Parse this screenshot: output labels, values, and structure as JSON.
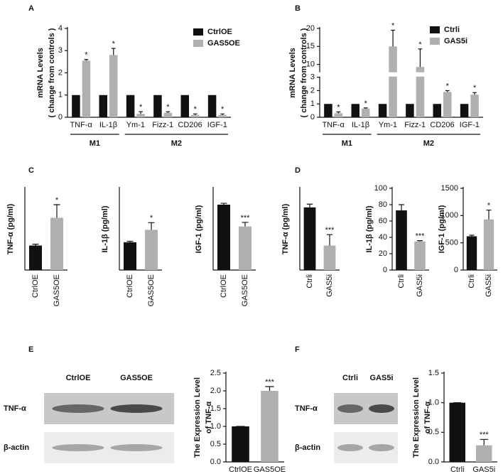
{
  "chart_data": [
    {
      "panel": "A",
      "type": "bar",
      "y_label": [
        "mRNA Levels",
        "( change from controls )"
      ],
      "categories": [
        "TNF-α",
        "IL-1β",
        "Ym-1",
        "Fizz-1",
        "CD206",
        "IGF-1"
      ],
      "category_groups": [
        "M1",
        "M1",
        "M2",
        "M2",
        "M2",
        "M2"
      ],
      "series": [
        {
          "name": "CtrlOE",
          "color": "#111111",
          "values": [
            1,
            1,
            1,
            1,
            1,
            1
          ]
        },
        {
          "name": "GAS5OE",
          "color": "#b0b0b0",
          "values": [
            2.55,
            2.8,
            0.15,
            0.2,
            0.1,
            0.1
          ],
          "errors": [
            0.05,
            0.3,
            0.1,
            0.05,
            0.05,
            0.05
          ],
          "significance": [
            "*",
            "*",
            "*",
            "*",
            "*",
            "*"
          ]
        }
      ],
      "ylim": [
        0,
        4
      ],
      "yticks": [
        0,
        1,
        2,
        3,
        4
      ],
      "legend": "top-right"
    },
    {
      "panel": "B",
      "type": "bar",
      "y_label": [
        "mRNA Levels",
        "( change from controls )"
      ],
      "categories": [
        "TNF-α",
        "IL-1β",
        "Ym-1",
        "Fizz-1",
        "CD206",
        "IGF-1"
      ],
      "category_groups": [
        "M1",
        "M1",
        "M2",
        "M2",
        "M2",
        "M2"
      ],
      "series": [
        {
          "name": "Ctrli",
          "color": "#111111",
          "values": [
            1,
            1,
            1,
            1,
            1,
            1
          ]
        },
        {
          "name": "GAS5i",
          "color": "#b0b0b0",
          "values": [
            0.3,
            0.65,
            15,
            9.3,
            1.9,
            1.7
          ],
          "errors": [
            0.1,
            0.05,
            4.5,
            5,
            0.1,
            0.15
          ],
          "significance": [
            "*",
            "*",
            "*",
            "*",
            "*",
            "*"
          ]
        }
      ],
      "ylim": [
        0,
        20
      ],
      "ybreak": [
        3,
        8
      ],
      "yticks": [
        0,
        1,
        2,
        3,
        10,
        15,
        20
      ],
      "legend": "top-right"
    },
    {
      "panel": "C",
      "type": "bar",
      "y_label": [
        "TNF-α (pg/ml)"
      ],
      "categories": [
        "CtrlOE",
        "GAS5OE"
      ],
      "colors": [
        "#111111",
        "#b0b0b0"
      ],
      "values": [
        75,
        160
      ],
      "errors": [
        4,
        40
      ],
      "significance": [
        null,
        "*"
      ],
      "ylim": [
        0,
        250
      ]
    },
    {
      "type": "bar",
      "y_label": [
        "IL-1β (pg/ml)"
      ],
      "categories": [
        "CtrlOE",
        "GAS5OE"
      ],
      "colors": [
        "#111111",
        "#b0b0b0"
      ],
      "values": [
        85,
        123
      ],
      "errors": [
        3,
        22
      ],
      "significance": [
        null,
        "*"
      ],
      "ylim": [
        0,
        250
      ]
    },
    {
      "type": "bar",
      "y_label": [
        "IGF-1 (pg/ml)"
      ],
      "categories": [
        "CtrlOE",
        "GAS5OE"
      ],
      "colors": [
        "#111111",
        "#b0b0b0"
      ],
      "values": [
        720,
        480
      ],
      "errors": [
        15,
        45
      ],
      "significance": [
        null,
        "***"
      ],
      "ylim": [
        0,
        900
      ]
    },
    {
      "panel": "D",
      "type": "bar",
      "y_label": [
        "TNF-α (pg/ml)"
      ],
      "categories": [
        "Ctrli",
        "GAS5i"
      ],
      "colors": [
        "#111111",
        "#b0b0b0"
      ],
      "values": [
        115,
        45
      ],
      "errors": [
        6,
        20
      ],
      "significance": [
        null,
        "***"
      ],
      "ylim": [
        0,
        150
      ]
    },
    {
      "type": "bar",
      "y_label": [
        "IL-1β (pg/ml)"
      ],
      "categories": [
        "Ctrli",
        "GAS5i"
      ],
      "colors": [
        "#111111",
        "#b0b0b0"
      ],
      "values": [
        73,
        35
      ],
      "errors": [
        7,
        1
      ],
      "significance": [
        null,
        "***"
      ],
      "ylim": [
        0,
        100
      ],
      "yticks": [
        0,
        20,
        40,
        60,
        80,
        100
      ]
    },
    {
      "type": "bar",
      "y_label": [
        "IGF-1 (pg/ml)"
      ],
      "categories": [
        "Ctrli",
        "GAS5i"
      ],
      "colors": [
        "#111111",
        "#b0b0b0"
      ],
      "values": [
        620,
        930
      ],
      "errors": [
        20,
        170
      ],
      "significance": [
        null,
        "*"
      ],
      "ylim": [
        0,
        1500
      ],
      "yticks": [
        0,
        500,
        1000,
        1500
      ]
    },
    {
      "panel": "E",
      "type": "bar",
      "y_label": [
        "The Expression Level",
        "of TNF-α"
      ],
      "categories": [
        "CtrlOE",
        "GAS5OE"
      ],
      "colors": [
        "#111111",
        "#b0b0b0"
      ],
      "values": [
        1,
        2.0
      ],
      "errors": [
        0,
        0.12
      ],
      "significance": [
        null,
        "***"
      ],
      "ylim": [
        0,
        2.5
      ],
      "yticks": [
        {
          "value": 0,
          "label": "0.0"
        },
        0.5,
        {
          "value": 1,
          "label": "1.0"
        },
        1.5,
        {
          "value": 2,
          "label": "2.0"
        },
        2.5
      ],
      "blot": {
        "columns": [
          "CtrlOE",
          "GAS5OE"
        ],
        "rows": [
          "TNF-α",
          "β-actin"
        ]
      }
    },
    {
      "panel": "F",
      "type": "bar",
      "y_label": [
        "The Expression Level",
        "of TNF-α"
      ],
      "categories": [
        "Ctrli",
        "GAS5i"
      ],
      "colors": [
        "#111111",
        "#b0b0b0"
      ],
      "values": [
        1,
        0.28
      ],
      "errors": [
        0,
        0.1
      ],
      "significance": [
        null,
        "***"
      ],
      "ylim": [
        0,
        1.5
      ],
      "yticks": [
        {
          "value": 0,
          "label": "0.0"
        },
        0.5,
        {
          "value": 1,
          "label": "1.0"
        },
        1.5
      ],
      "blot": {
        "columns": [
          "Ctrli",
          "GAS5i"
        ],
        "rows": [
          "TNF-α",
          "β-actin"
        ]
      }
    }
  ]
}
